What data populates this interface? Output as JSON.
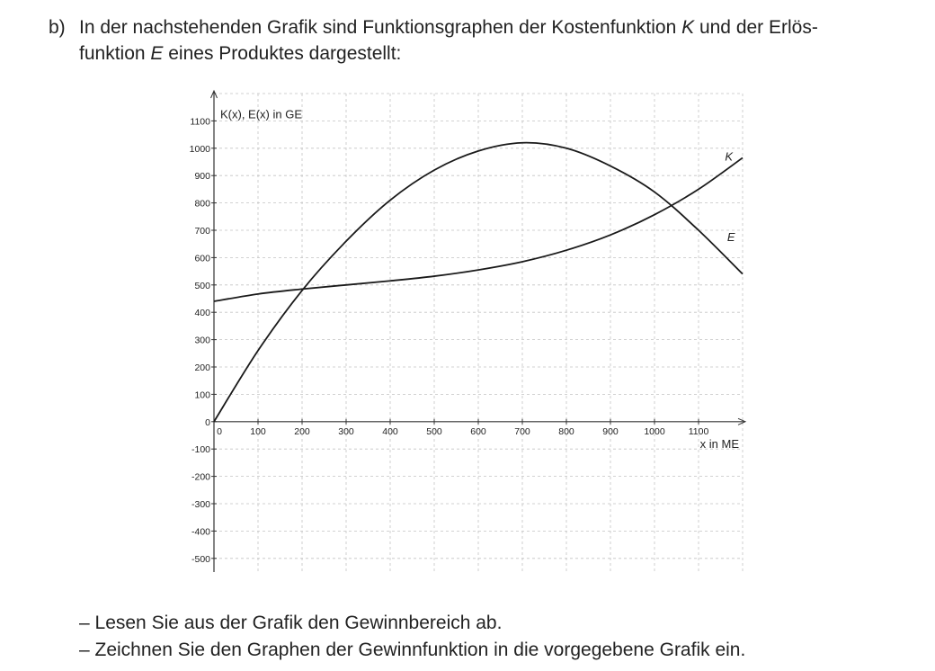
{
  "task": {
    "marker": "b)",
    "intro_part1": "In der nachstehenden Grafik sind Funktionsgraphen der Kostenfunktion ",
    "k_symbol": "K",
    "intro_part2": " und der Erlös-",
    "intro_part3": "funktion ",
    "e_symbol": "E",
    "intro_part4": " eines Produktes dargestellt:"
  },
  "tasks": [
    "– Lesen Sie aus der Grafik den Gewinnbereich ab.",
    "– Zeichnen Sie den Graphen der Gewinnfunktion in die vorgegebene Grafik ein."
  ],
  "chart_data": {
    "type": "line",
    "ylabel": "K(x), E(x) in GE",
    "xlabel": "x in ME",
    "xlim": [
      0,
      1200
    ],
    "ylim": [
      -550,
      1200
    ],
    "x_ticks": [
      0,
      100,
      200,
      300,
      400,
      500,
      600,
      700,
      800,
      900,
      1000,
      1100
    ],
    "x_tick_labels": [
      "0",
      "100",
      "200",
      "300",
      "400",
      "500",
      "600",
      "700",
      "800",
      "900",
      "1000",
      "1100"
    ],
    "y_ticks": [
      -500,
      -400,
      -300,
      -200,
      -100,
      0,
      100,
      200,
      300,
      400,
      500,
      600,
      700,
      800,
      900,
      1000,
      1100
    ],
    "y_tick_labels": [
      "-500",
      "-400",
      "-300",
      "-200",
      "-100",
      "0",
      "100",
      "200",
      "300",
      "400",
      "500",
      "600",
      "700",
      "800",
      "900",
      "1000",
      "1100"
    ],
    "grid": true,
    "series": [
      {
        "name": "K",
        "x": [
          0,
          100,
          200,
          300,
          400,
          500,
          600,
          700,
          800,
          900,
          1000,
          1100,
          1200
        ],
        "y": [
          440,
          467,
          485,
          500,
          515,
          532,
          555,
          585,
          627,
          683,
          757,
          850,
          965
        ]
      },
      {
        "name": "E",
        "x": [
          0,
          100,
          200,
          300,
          400,
          500,
          600,
          700,
          800,
          900,
          1000,
          1100,
          1200
        ],
        "y": [
          0,
          260,
          480,
          660,
          810,
          920,
          990,
          1020,
          1000,
          935,
          840,
          700,
          540
        ]
      }
    ]
  }
}
